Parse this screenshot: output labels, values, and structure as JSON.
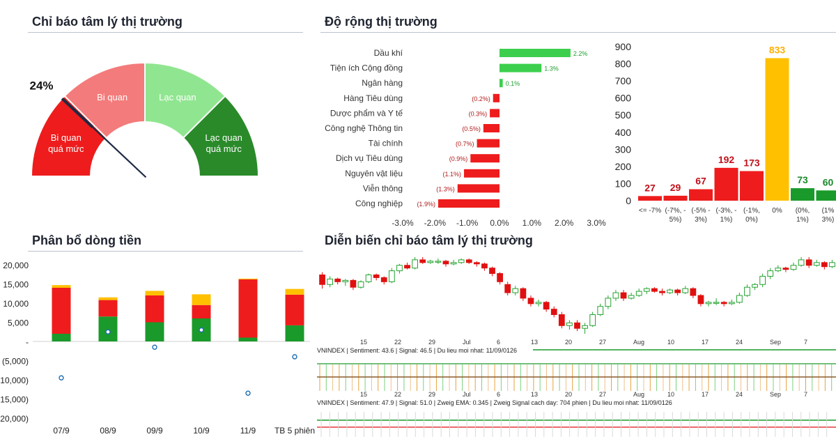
{
  "titles": {
    "sentiment": "Chỉ báo tâm lý thị trường",
    "breadth": "Độ rộng thị trường",
    "flow": "Phân bổ dòng tiền",
    "evolution": "Diễn biến chỉ báo tâm lý thị trường"
  },
  "chart_data": [
    {
      "type": "gauge",
      "value": 24,
      "value_label": "24%",
      "zones": [
        {
          "label": "Bi quan quá mức",
          "from": 0,
          "to": 25,
          "color": "#ee1c1c"
        },
        {
          "label": "Bi quan",
          "from": 25,
          "to": 50,
          "color": "#f47b7b"
        },
        {
          "label": "Lạc quan",
          "from": 50,
          "to": 75,
          "color": "#90e690"
        },
        {
          "label": "Lạc quan quá mức",
          "from": 75,
          "to": 100,
          "color": "#2a8a2a"
        }
      ]
    },
    {
      "type": "bar",
      "orientation": "horizontal",
      "categories": [
        "Dầu khí",
        "Tiện ích Cộng đồng",
        "Ngân hàng",
        "Hàng Tiêu dùng",
        "Dược phẩm và Y tế",
        "Công nghệ Thông tin",
        "Tài chính",
        "Dịch vụ Tiêu dùng",
        "Nguyên vật liệu",
        "Viễn thông",
        "Công nghiệp"
      ],
      "values": [
        2.2,
        1.3,
        0.1,
        -0.2,
        -0.3,
        -0.5,
        -0.7,
        -0.9,
        -1.1,
        -1.3,
        -1.9
      ],
      "data_labels": [
        "2.2%",
        "1.3%",
        "0.1%",
        "(0.2%)",
        "(0.3%)",
        "(0.5%)",
        "(0.7%)",
        "(0.9%)",
        "(1.1%)",
        "(1.3%)",
        "(1.9%)"
      ],
      "xlim": [
        -3,
        3
      ],
      "x_ticks": [
        "-3.0%",
        "-2.0%",
        "-1.0%",
        "0.0%",
        "1.0%",
        "2.0%",
        "3.0%"
      ],
      "colors": {
        "positive": "#3ccf4e",
        "negative": "#ee1c1c",
        "pos_label": "#1e9e2e",
        "neg_label": "#b01818"
      }
    },
    {
      "type": "bar",
      "categories": [
        [
          "<= -7%"
        ],
        [
          "(-7%, -",
          "5%)"
        ],
        [
          "(-5% -",
          "3%)"
        ],
        [
          "(-3%, -",
          "1%)"
        ],
        [
          "(-1%,",
          "0%)"
        ],
        [
          "0%"
        ],
        [
          "(0%,",
          "1%)"
        ],
        [
          "(1%",
          "3%)"
        ]
      ],
      "values": [
        27,
        29,
        67,
        192,
        173,
        833,
        73,
        60
      ],
      "bar_colors": [
        "#ee1c1c",
        "#ee1c1c",
        "#ee1c1c",
        "#ee1c1c",
        "#ee1c1c",
        "#ffc000",
        "#1a9a2a",
        "#1a9a2a"
      ],
      "label_colors": [
        "#c0101a",
        "#c0101a",
        "#c0101a",
        "#c0101a",
        "#c0101a",
        "#ffb000",
        "#1a8a2a",
        "#1a8a2a"
      ],
      "ylim": [
        0,
        900
      ],
      "y_ticks": [
        0,
        100,
        200,
        300,
        400,
        500,
        600,
        700,
        800,
        900
      ]
    },
    {
      "type": "bar",
      "stacked": true,
      "categories": [
        "07/9",
        "08/9",
        "09/9",
        "10/9",
        "11/9",
        "TB 5 phiên"
      ],
      "series": [
        {
          "color": "#1a9a2a",
          "values": [
            2000,
            6500,
            5000,
            6000,
            1000,
            4200
          ]
        },
        {
          "color": "#ee1c1c",
          "values": [
            12000,
            4300,
            7000,
            3500,
            15200,
            8000
          ]
        },
        {
          "color": "#ffc000",
          "values": [
            700,
            700,
            1200,
            2800,
            200,
            1500
          ]
        }
      ],
      "dots": [
        -9500,
        2500,
        -1500,
        3000,
        -13500,
        -4000
      ],
      "ylim": [
        -20000,
        20000
      ],
      "y_ticks": [
        "20,000",
        "15,000",
        "10,000",
        "5,000",
        "-",
        "(5,000)",
        "(10,000)",
        "(15,000)",
        "(20,000)"
      ]
    },
    {
      "type": "candlestick",
      "date_labels": [
        "15",
        "22",
        "29",
        "Jul",
        "6",
        "13",
        "20",
        "27",
        "Aug",
        "10",
        "17",
        "24",
        "Sep",
        "7"
      ],
      "colors": {
        "up": "#23a32f",
        "down": "#e01010"
      },
      "candles": [
        {
          "o": 65,
          "c": 58,
          "h": 67,
          "l": 55
        },
        {
          "o": 58,
          "c": 62,
          "h": 64,
          "l": 56
        },
        {
          "o": 62,
          "c": 60,
          "h": 63,
          "l": 58
        },
        {
          "o": 60,
          "c": 61,
          "h": 62,
          "l": 57
        },
        {
          "o": 61,
          "c": 56,
          "h": 62,
          "l": 54
        },
        {
          "o": 56,
          "c": 60,
          "h": 61,
          "l": 55
        },
        {
          "o": 60,
          "c": 65,
          "h": 66,
          "l": 59
        },
        {
          "o": 65,
          "c": 63,
          "h": 66,
          "l": 61
        },
        {
          "o": 63,
          "c": 60,
          "h": 64,
          "l": 58
        },
        {
          "o": 60,
          "c": 68,
          "h": 70,
          "l": 59
        },
        {
          "o": 68,
          "c": 72,
          "h": 73,
          "l": 66
        },
        {
          "o": 72,
          "c": 70,
          "h": 74,
          "l": 69
        },
        {
          "o": 70,
          "c": 76,
          "h": 78,
          "l": 69
        },
        {
          "o": 76,
          "c": 74,
          "h": 78,
          "l": 73
        },
        {
          "o": 74,
          "c": 75,
          "h": 76,
          "l": 73
        },
        {
          "o": 75,
          "c": 75,
          "h": 77,
          "l": 73
        },
        {
          "o": 75,
          "c": 73,
          "h": 76,
          "l": 71
        },
        {
          "o": 73,
          "c": 74,
          "h": 76,
          "l": 72
        },
        {
          "o": 74,
          "c": 76,
          "h": 77,
          "l": 73
        },
        {
          "o": 76,
          "c": 74,
          "h": 77,
          "l": 73
        },
        {
          "o": 74,
          "c": 73,
          "h": 75,
          "l": 71
        },
        {
          "o": 73,
          "c": 70,
          "h": 74,
          "l": 68
        },
        {
          "o": 70,
          "c": 66,
          "h": 71,
          "l": 64
        },
        {
          "o": 66,
          "c": 60,
          "h": 67,
          "l": 58
        },
        {
          "o": 58,
          "c": 52,
          "h": 60,
          "l": 50
        },
        {
          "o": 52,
          "c": 55,
          "h": 57,
          "l": 50
        },
        {
          "o": 55,
          "c": 48,
          "h": 56,
          "l": 46
        },
        {
          "o": 48,
          "c": 44,
          "h": 50,
          "l": 42
        },
        {
          "o": 44,
          "c": 45,
          "h": 47,
          "l": 42
        },
        {
          "o": 45,
          "c": 40,
          "h": 46,
          "l": 38
        },
        {
          "o": 40,
          "c": 36,
          "h": 42,
          "l": 34
        },
        {
          "o": 36,
          "c": 28,
          "h": 38,
          "l": 26
        },
        {
          "o": 28,
          "c": 30,
          "h": 32,
          "l": 25
        },
        {
          "o": 30,
          "c": 26,
          "h": 32,
          "l": 24
        },
        {
          "o": 26,
          "c": 28,
          "h": 30,
          "l": 22
        },
        {
          "o": 28,
          "c": 36,
          "h": 38,
          "l": 27
        },
        {
          "o": 36,
          "c": 42,
          "h": 44,
          "l": 35
        },
        {
          "o": 42,
          "c": 48,
          "h": 50,
          "l": 40
        },
        {
          "o": 48,
          "c": 52,
          "h": 54,
          "l": 46
        },
        {
          "o": 52,
          "c": 48,
          "h": 54,
          "l": 46
        },
        {
          "o": 48,
          "c": 50,
          "h": 52,
          "l": 47
        },
        {
          "o": 50,
          "c": 53,
          "h": 55,
          "l": 49
        },
        {
          "o": 53,
          "c": 55,
          "h": 56,
          "l": 51
        },
        {
          "o": 55,
          "c": 53,
          "h": 56,
          "l": 52
        },
        {
          "o": 53,
          "c": 52,
          "h": 55,
          "l": 50
        },
        {
          "o": 52,
          "c": 54,
          "h": 55,
          "l": 51
        },
        {
          "o": 54,
          "c": 52,
          "h": 55,
          "l": 50
        },
        {
          "o": 52,
          "c": 55,
          "h": 57,
          "l": 51
        },
        {
          "o": 55,
          "c": 50,
          "h": 56,
          "l": 48
        },
        {
          "o": 50,
          "c": 44,
          "h": 51,
          "l": 42
        },
        {
          "o": 44,
          "c": 45,
          "h": 46,
          "l": 42
        },
        {
          "o": 45,
          "c": 45,
          "h": 48,
          "l": 43
        },
        {
          "o": 45,
          "c": 44,
          "h": 46,
          "l": 42
        },
        {
          "o": 44,
          "c": 45,
          "h": 47,
          "l": 43
        },
        {
          "o": 45,
          "c": 50,
          "h": 52,
          "l": 44
        },
        {
          "o": 50,
          "c": 56,
          "h": 58,
          "l": 49
        },
        {
          "o": 56,
          "c": 58,
          "h": 59,
          "l": 54
        },
        {
          "o": 58,
          "c": 64,
          "h": 66,
          "l": 56
        },
        {
          "o": 64,
          "c": 68,
          "h": 70,
          "l": 62
        },
        {
          "o": 68,
          "c": 70,
          "h": 72,
          "l": 67
        },
        {
          "o": 70,
          "c": 69,
          "h": 71,
          "l": 67
        },
        {
          "o": 69,
          "c": 72,
          "h": 74,
          "l": 68
        },
        {
          "o": 72,
          "c": 76,
          "h": 78,
          "l": 71
        },
        {
          "o": 76,
          "c": 72,
          "h": 78,
          "l": 70
        },
        {
          "o": 72,
          "c": 74,
          "h": 76,
          "l": 71
        },
        {
          "o": 74,
          "c": 71,
          "h": 75,
          "l": 69
        },
        {
          "o": 71,
          "c": 74,
          "h": 76,
          "l": 70
        }
      ],
      "panels": [
        {
          "info": "VNINDEX | Sentiment: 43.6 | Signal: 46.5 | Du lieu moi nhat: 11/09/0126"
        },
        {
          "info": "VNINDEX | Sentiment: 47.9 | Signal: 51.0 | Zweig EMA: 0.345 | Zweig Signal cach day: 704 phien | Du lieu moi nhat: 11/09/0126"
        }
      ]
    }
  ]
}
